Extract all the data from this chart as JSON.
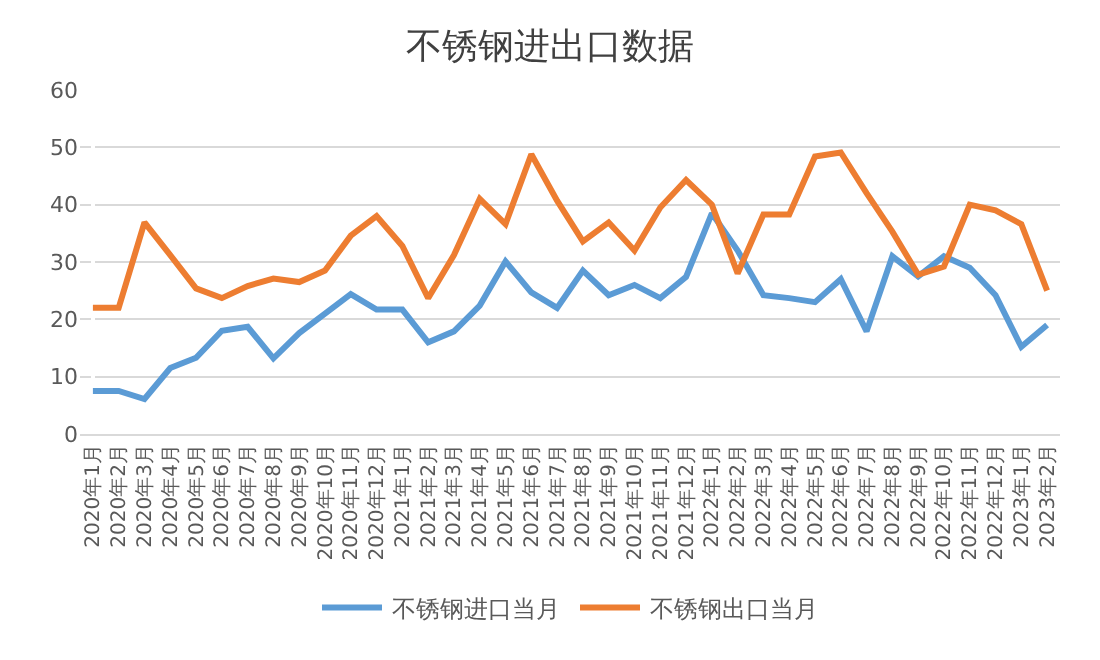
{
  "chart_data": {
    "type": "line",
    "title": "不锈钢进出口数据",
    "categories": [
      "2020年1月",
      "2020年2月",
      "2020年3月",
      "2020年4月",
      "2020年5月",
      "2020年6月",
      "2020年7月",
      "2020年8月",
      "2020年9月",
      "2020年10月",
      "2020年11月",
      "2020年12月",
      "2021年1月",
      "2021年2月",
      "2021年3月",
      "2021年4月",
      "2021年5月",
      "2021年6月",
      "2021年7月",
      "2021年8月",
      "2021年9月",
      "2021年10月",
      "2021年11月",
      "2021年12月",
      "2022年1月",
      "2022年2月",
      "2022年3月",
      "2022年4月",
      "2022年5月",
      "2022年6月",
      "2022年7月",
      "2022年8月",
      "2022年9月",
      "2022年10月",
      "2022年11月",
      "2022年12月",
      "2023年1月",
      "2023年2月"
    ],
    "series": [
      {
        "name": "不锈钢进口当月",
        "color": "#5b9bd5",
        "values": [
          7.5,
          7.5,
          6.1,
          11.5,
          13.3,
          18,
          18.7,
          13.2,
          17.6,
          21,
          24.4,
          21.7,
          21.7,
          16,
          17.9,
          22.4,
          30.1,
          24.7,
          22,
          28.5,
          24.2,
          26,
          23.7,
          27.4,
          38.5,
          32,
          24.2,
          23.7,
          23,
          27,
          17.9,
          31,
          27.5,
          31,
          29,
          24.2,
          15.2,
          19
        ]
      },
      {
        "name": "不锈钢出口当月",
        "color": "#ed7d31",
        "values": [
          22,
          22,
          36.9,
          31.2,
          25.4,
          23.7,
          25.8,
          27.1,
          26.5,
          28.5,
          34.6,
          38,
          32.8,
          23.7,
          31.2,
          41,
          36.6,
          48.8,
          40.7,
          33.6,
          36.9,
          32,
          39.5,
          44.3,
          40,
          28,
          38.3,
          38.3,
          48.4,
          49.1,
          42,
          35.3,
          27.8,
          29.2,
          40,
          39,
          36.6,
          25
        ]
      }
    ],
    "ylim": [
      0,
      60
    ],
    "yticks": [
      0,
      10,
      20,
      30,
      40,
      50,
      60
    ],
    "grid": "y",
    "legend": "bottom",
    "marker": "none",
    "line_style": "solid"
  }
}
